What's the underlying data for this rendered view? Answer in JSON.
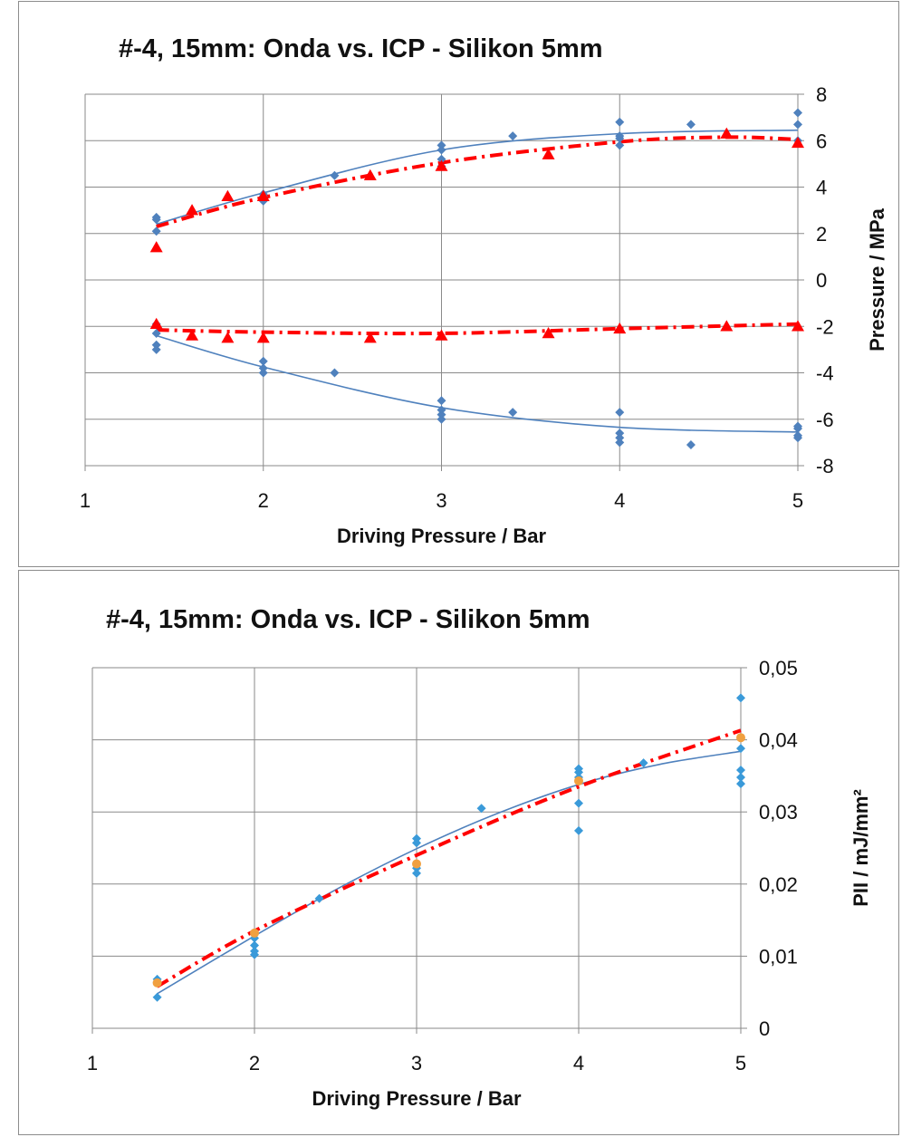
{
  "chart_data": [
    {
      "type": "scatter",
      "title": "#-4,  15mm: Onda vs. ICP - Silikon 5mm",
      "xlabel": "Driving Pressure / Bar",
      "ylabel": "Pressure / MPa",
      "xlim": [
        1,
        5
      ],
      "ylim": [
        -8,
        8
      ],
      "xticks": [
        "1",
        "2",
        "3",
        "4",
        "5"
      ],
      "yticks": [
        "8",
        "6",
        "4",
        "2",
        "0",
        "-2",
        "-4",
        "-6",
        "-8"
      ],
      "y_axis_side": "right",
      "grid": true,
      "series": [
        {
          "marker": "diamond",
          "color": "#4f81bd",
          "points": [
            [
              1.4,
              2.6
            ],
            [
              1.4,
              2.1
            ],
            [
              1.4,
              2.7
            ],
            [
              2,
              3.6
            ],
            [
              2,
              3.4
            ],
            [
              2,
              3.7
            ],
            [
              2.4,
              4.5
            ],
            [
              3,
              5.8
            ],
            [
              3,
              5.6
            ],
            [
              3,
              5.2
            ],
            [
              3,
              4.9
            ],
            [
              3.4,
              6.2
            ],
            [
              4,
              6.8
            ],
            [
              4,
              6.2
            ],
            [
              4,
              5.8
            ],
            [
              4,
              6.1
            ],
            [
              4.4,
              6.7
            ],
            [
              5,
              7.2
            ],
            [
              5,
              6.7
            ],
            [
              5,
              6.0
            ],
            [
              1.4,
              -1.9
            ],
            [
              1.4,
              -2.3
            ],
            [
              1.4,
              -2.8
            ],
            [
              1.4,
              -3.0
            ],
            [
              2,
              -3.5
            ],
            [
              2,
              -3.8
            ],
            [
              2,
              -4.0
            ],
            [
              2.4,
              -4.0
            ],
            [
              3,
              -5.2
            ],
            [
              3,
              -5.6
            ],
            [
              3,
              -5.8
            ],
            [
              3,
              -6.0
            ],
            [
              3.4,
              -5.7
            ],
            [
              4,
              -5.7
            ],
            [
              4,
              -6.6
            ],
            [
              4,
              -6.8
            ],
            [
              4,
              -7.0
            ],
            [
              4.4,
              -7.1
            ],
            [
              5,
              -6.3
            ],
            [
              5,
              -6.4
            ],
            [
              5,
              -6.7
            ],
            [
              5,
              -6.8
            ]
          ],
          "trend_upper": [
            [
              1.4,
              2.4
            ],
            [
              2,
              3.75
            ],
            [
              3,
              5.6
            ],
            [
              4,
              6.3
            ],
            [
              5,
              6.45
            ]
          ],
          "trend_lower": [
            [
              1.4,
              -2.4
            ],
            [
              2,
              -3.75
            ],
            [
              3,
              -5.5
            ],
            [
              4,
              -6.35
            ],
            [
              5,
              -6.55
            ]
          ]
        },
        {
          "marker": "triangle",
          "color": "#ff0000",
          "points": [
            [
              1.4,
              1.4
            ],
            [
              1.6,
              3.0
            ],
            [
              1.8,
              3.6
            ],
            [
              2,
              3.6
            ],
            [
              2.6,
              4.5
            ],
            [
              3,
              4.9
            ],
            [
              3.6,
              5.4
            ],
            [
              4.6,
              6.3
            ],
            [
              5,
              5.9
            ],
            [
              1.4,
              -1.9
            ],
            [
              1.6,
              -2.4
            ],
            [
              1.8,
              -2.5
            ],
            [
              2,
              -2.5
            ],
            [
              2.6,
              -2.5
            ],
            [
              3,
              -2.4
            ],
            [
              3.6,
              -2.3
            ],
            [
              4,
              -2.1
            ],
            [
              4.6,
              -2.0
            ],
            [
              5,
              -2.0
            ]
          ],
          "trend_upper": [
            [
              1.4,
              2.3
            ],
            [
              2,
              3.55
            ],
            [
              3,
              5.05
            ],
            [
              4,
              5.95
            ],
            [
              4.6,
              6.15
            ],
            [
              5,
              6.05
            ]
          ],
          "trend_lower": [
            [
              1.4,
              -2.15
            ],
            [
              2,
              -2.25
            ],
            [
              3,
              -2.3
            ],
            [
              4,
              -2.1
            ],
            [
              5,
              -1.9
            ]
          ]
        }
      ]
    },
    {
      "type": "scatter",
      "title": "#-4, 15mm: Onda vs. ICP  - Silikon 5mm",
      "xlabel": "Driving Pressure / Bar",
      "ylabel": "PII / mJ/mm²",
      "xlim": [
        1,
        5
      ],
      "ylim": [
        0,
        0.05
      ],
      "xticks": [
        "1",
        "2",
        "3",
        "4",
        "5"
      ],
      "yticks": [
        "0,05",
        "0,04",
        "0,03",
        "0,02",
        "0,01",
        "0"
      ],
      "y_axis_side": "right",
      "grid": true,
      "series": [
        {
          "marker": "diamond",
          "color": "#3a9ad9",
          "points": [
            [
              1.4,
              0.0068
            ],
            [
              1.4,
              0.0064
            ],
            [
              1.4,
              0.0043
            ],
            [
              2,
              0.0125
            ],
            [
              2,
              0.0115
            ],
            [
              2,
              0.0107
            ],
            [
              2,
              0.0102
            ],
            [
              2.4,
              0.018
            ],
            [
              3,
              0.0263
            ],
            [
              3,
              0.0257
            ],
            [
              3,
              0.0222
            ],
            [
              3,
              0.0215
            ],
            [
              3.4,
              0.0305
            ],
            [
              4,
              0.036
            ],
            [
              4,
              0.0355
            ],
            [
              4,
              0.0348
            ],
            [
              4,
              0.0312
            ],
            [
              4,
              0.0274
            ],
            [
              4.4,
              0.0368
            ],
            [
              5,
              0.0458
            ],
            [
              5,
              0.0388
            ],
            [
              5,
              0.0358
            ],
            [
              5,
              0.0348
            ],
            [
              5,
              0.0339
            ]
          ],
          "trend": [
            [
              1.4,
              0.0048
            ],
            [
              2,
              0.0128
            ],
            [
              2.5,
              0.0192
            ],
            [
              3,
              0.0249
            ],
            [
              3.5,
              0.0298
            ],
            [
              4,
              0.0338
            ],
            [
              4.5,
              0.0366
            ],
            [
              5,
              0.0384
            ]
          ]
        },
        {
          "marker": "circle",
          "color": "#f0a040",
          "points": [
            [
              1.4,
              0.0063
            ],
            [
              2,
              0.0132
            ],
            [
              3,
              0.0228
            ],
            [
              4,
              0.0343
            ],
            [
              5,
              0.0403
            ]
          ],
          "trend": [
            [
              1.4,
              0.0058
            ],
            [
              2,
              0.0135
            ],
            [
              3,
              0.024
            ],
            [
              4,
              0.0335
            ],
            [
              5,
              0.0413
            ]
          ]
        }
      ]
    }
  ]
}
